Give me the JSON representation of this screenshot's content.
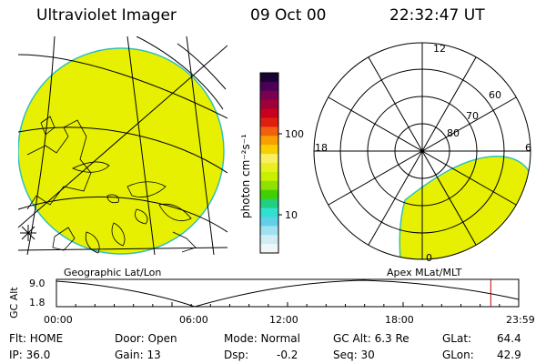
{
  "header": {
    "instrument": "Ultraviolet Imager",
    "date": "09 Oct 00",
    "time": "22:32:47 UT"
  },
  "colorbar": {
    "label": "photon cm⁻²s⁻¹",
    "ticks": [
      "100",
      "10"
    ],
    "colors": [
      "#1b0033",
      "#4b0055",
      "#7a0052",
      "#a0003a",
      "#c8001e",
      "#e0200e",
      "#f06010",
      "#f8a000",
      "#f8d000",
      "#f8f060",
      "#e8f020",
      "#c8f000",
      "#90e000",
      "#40d000",
      "#20d080",
      "#30e0d0",
      "#60d0e8",
      "#a0e0f0",
      "#d0ecf4",
      "#eef6f8"
    ]
  },
  "geo_panel": {
    "label": "Geographic Lat/Lon",
    "disk_color": "#e6f000"
  },
  "polar_plot": {
    "label": "Apex MLat/MLT",
    "mlt_labels": [
      "12",
      "18",
      "6",
      "0"
    ],
    "lat_labels": [
      "60",
      "70",
      "80"
    ]
  },
  "altitude_plot": {
    "ylabel": "GC Alt",
    "yticks": [
      "9.0",
      "1.8"
    ],
    "xticks": [
      "00:00",
      "06:00",
      "12:00",
      "18:00",
      "23:59"
    ],
    "current_time_hours": 22.55
  },
  "info": {
    "flt": "Flt: HOME",
    "ip": "IP: 36.0",
    "door": "Door: Open",
    "gain": "Gain: 13",
    "mode": "Mode: Normal",
    "dsp_label": "Dsp:",
    "dsp_value": "-0.2",
    "gc_alt": "GC Alt: 6.3 Re",
    "seq": "Seq: 30",
    "glat_label": "GLat:",
    "glat_value": "64.4",
    "glon_label": "GLon:",
    "glon_value": "42.9"
  }
}
